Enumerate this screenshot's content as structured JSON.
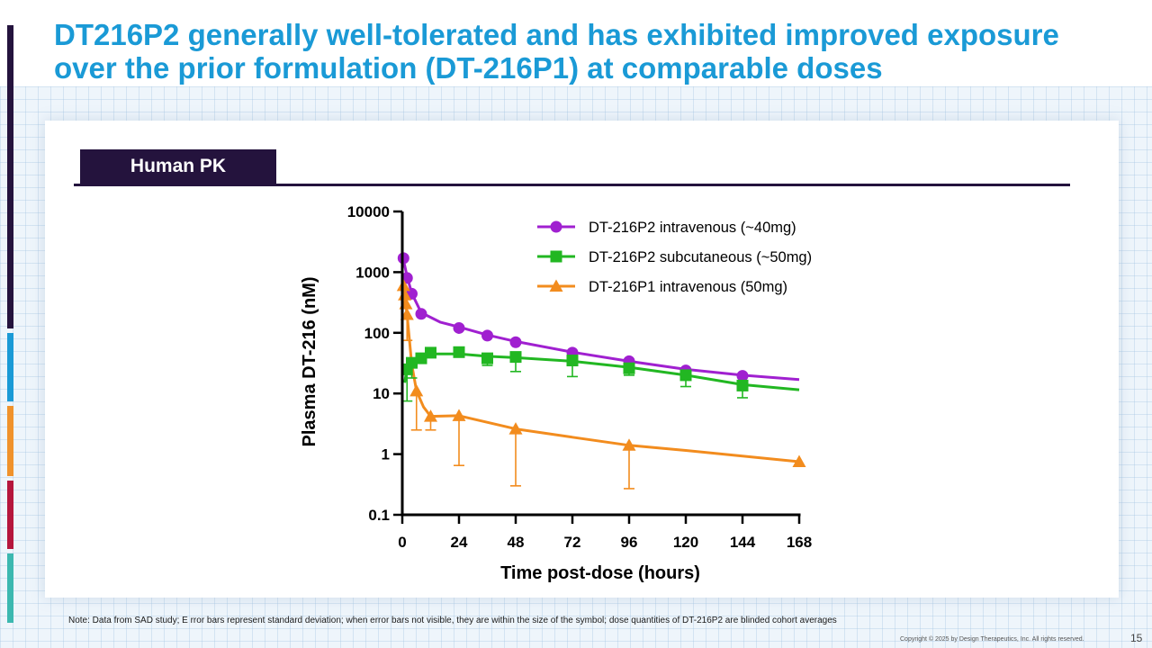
{
  "slide": {
    "title": "DT216P2 generally well-tolerated and has exhibited improved exposure over the prior formulation (DT-216P1) at comparable doses",
    "section_tab": "Human PK",
    "note": "Note: Data from SAD study; E rror bars represent standard deviation; when error bars not visible, they are within the size of the symbol; dose quantities of DT-216P2 are blinded cohort averages",
    "copyright": "Copyright © 2025 by Design Therapeutics, Inc. All rights reserved.",
    "page_number": "15",
    "accent_colors": [
      "#24133d",
      "#1a9ad6",
      "#f0922b",
      "#b5163c",
      "#3cb8b0"
    ]
  },
  "chart_data": {
    "type": "line",
    "title": "",
    "xlabel": "Time post-dose (hours)",
    "ylabel": "Plasma DT-216 (nM)",
    "xlim": [
      0,
      168
    ],
    "ylim": [
      0.1,
      10000
    ],
    "yscale": "log",
    "xticks": [
      0,
      24,
      48,
      72,
      96,
      120,
      144,
      168
    ],
    "yticks": [
      0.1,
      1,
      10,
      100,
      1000,
      10000
    ],
    "ytick_labels": [
      "0.1",
      "1",
      "10",
      "100",
      "1000",
      "10000"
    ],
    "legend_position": "top-right",
    "series": [
      {
        "name": "DT-216P2 intravenous (~40mg)",
        "color": "#a020d0",
        "marker": "circle",
        "x": [
          0.5,
          2,
          4,
          8,
          24,
          36,
          48,
          72,
          96,
          120,
          144
        ],
        "y": [
          1700,
          800,
          440,
          205,
          120,
          90,
          70,
          47,
          34,
          24,
          19.5
        ],
        "err_up": [
          0,
          0,
          0,
          0,
          0,
          0,
          0,
          0,
          0,
          0,
          0
        ],
        "err_down": [
          0,
          0,
          0,
          0,
          0,
          0,
          0,
          0,
          0,
          0,
          0
        ],
        "curve_x": [
          0,
          1,
          2,
          4,
          8,
          16,
          24,
          36,
          48,
          72,
          96,
          120,
          144,
          168
        ],
        "curve_y": [
          1800,
          1300,
          850,
          450,
          215,
          150,
          125,
          92,
          72,
          48,
          34,
          25,
          20,
          17
        ]
      },
      {
        "name": "DT-216P2 subcutaneous (~50mg)",
        "color": "#22b722",
        "marker": "square",
        "x": [
          2,
          4,
          8,
          12,
          24,
          36,
          48,
          72,
          96,
          120,
          144
        ],
        "y": [
          25,
          32,
          38,
          47,
          48,
          38,
          40,
          35,
          26,
          20,
          13.5
        ],
        "err_up": [
          0,
          0,
          0,
          0,
          0,
          0,
          0,
          0,
          0,
          0,
          0
        ],
        "err_down": [
          7.5,
          18,
          0,
          0,
          0,
          29,
          23,
          19,
          20,
          13,
          8.5
        ],
        "curve_x": [
          1,
          2,
          4,
          8,
          12,
          24,
          36,
          48,
          72,
          96,
          120,
          144,
          168
        ],
        "curve_y": [
          15,
          26,
          33,
          40,
          45,
          45,
          41,
          39,
          34,
          27,
          20,
          14,
          11.5
        ]
      },
      {
        "name": "DT-216P1 intravenous (50mg)",
        "color": "#f28c1e",
        "marker": "triangle",
        "x": [
          0.5,
          1,
          1.5,
          2,
          6,
          12,
          24,
          48,
          96,
          168
        ],
        "y": [
          600,
          420,
          300,
          200,
          11,
          4.2,
          4.3,
          2.6,
          1.4,
          0.75
        ],
        "err_up": [
          0,
          0,
          0,
          0,
          0,
          0,
          0,
          0,
          0,
          0
        ],
        "err_down": [
          0,
          0,
          0,
          75,
          2.5,
          2.5,
          0.65,
          0.3,
          0.27,
          0
        ],
        "curve_x": [
          0,
          0.5,
          1,
          2,
          4,
          6,
          9,
          12,
          24,
          48,
          72,
          96,
          120,
          168
        ],
        "curve_y": [
          700,
          600,
          420,
          200,
          30,
          11,
          6,
          4.2,
          4.3,
          2.6,
          1.9,
          1.4,
          1.15,
          0.75
        ]
      }
    ]
  }
}
